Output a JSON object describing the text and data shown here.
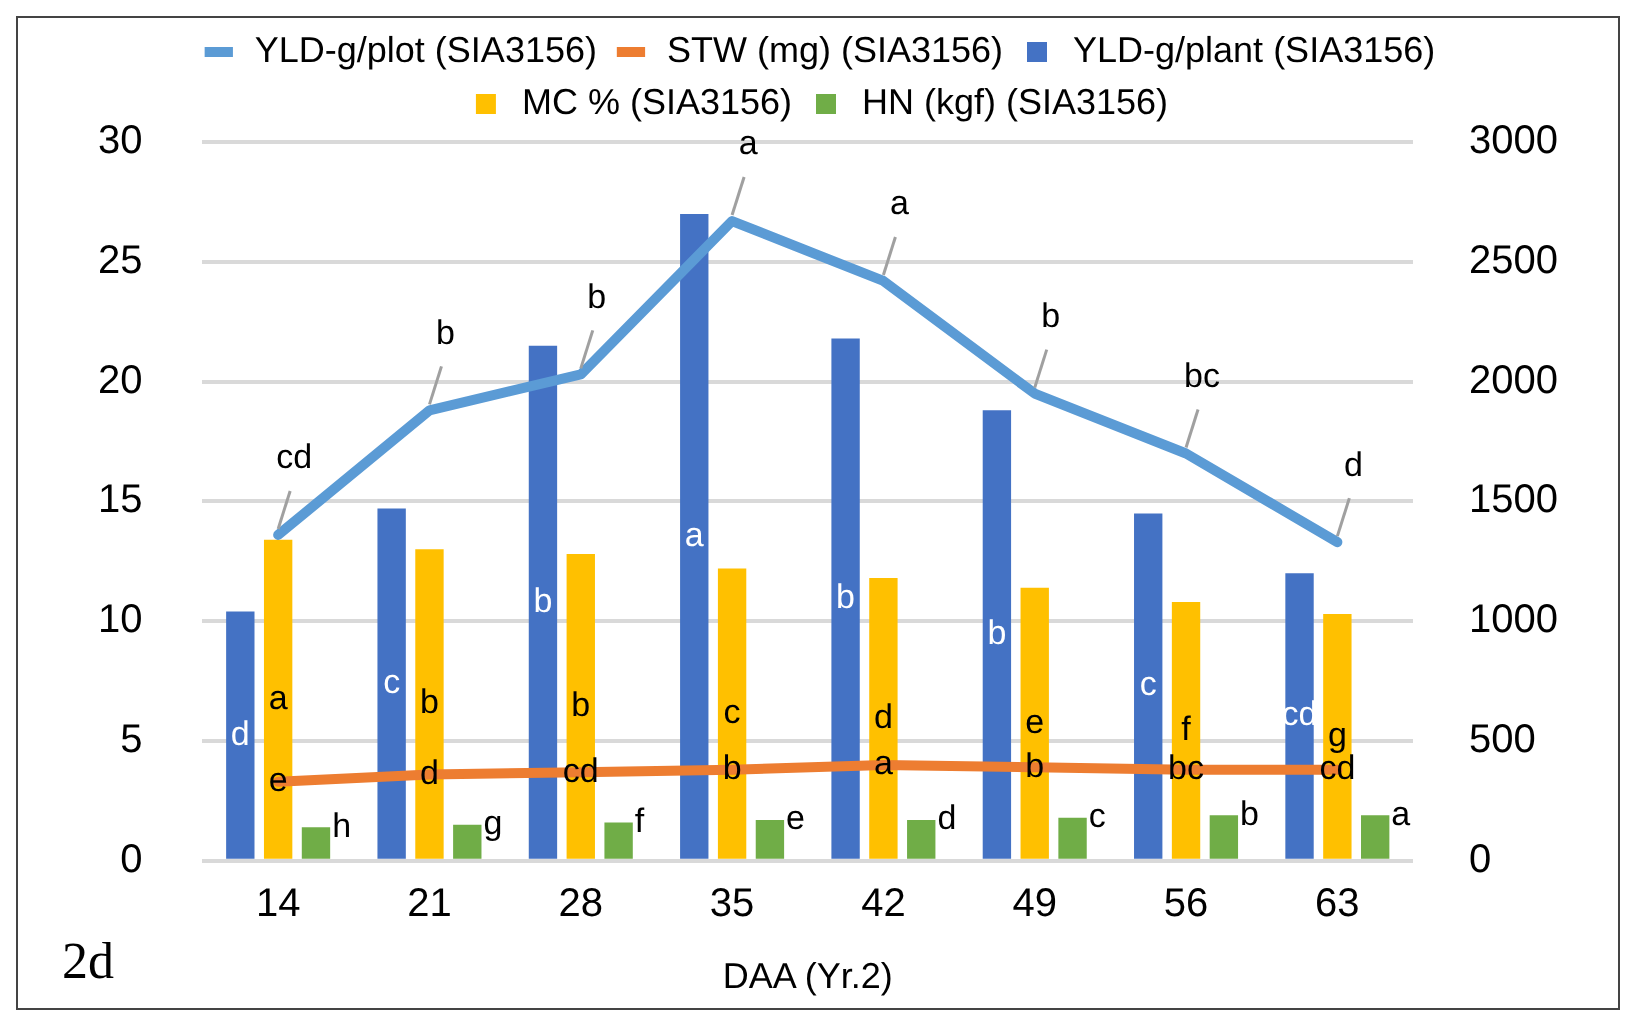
{
  "chart_data": {
    "type": "bar",
    "xlabel": "DAA (Yr.2)",
    "categories": [
      "14",
      "21",
      "28",
      "35",
      "42",
      "49",
      "56",
      "63"
    ],
    "series": [
      {
        "name": "YLD-g/plant (SIA3156)",
        "color": "#4472c4",
        "values": [
          10.4,
          14.7,
          21.5,
          27,
          21.8,
          18.8,
          14.5,
          12.0
        ],
        "value_labels": [
          "d",
          "c",
          "b",
          "a",
          "b",
          "b",
          "c",
          "cd"
        ]
      },
      {
        "name": "MC % (SIA3156)",
        "color": "#ffc000",
        "values": [
          13.4,
          13.0,
          12.8,
          12.2,
          11.8,
          11.4,
          10.8,
          10.3
        ],
        "value_labels": [
          "a",
          "b",
          "b",
          "c",
          "d",
          "e",
          "f",
          "g"
        ]
      },
      {
        "name": "HN (kgf) (SIA3156)",
        "color": "#70ad47",
        "values": [
          1.4,
          1.5,
          1.6,
          1.7,
          1.7,
          1.8,
          1.9,
          1.9
        ],
        "value_labels": [
          "h",
          "g",
          "f",
          "e",
          "d",
          "c",
          "b",
          "a"
        ]
      },
      {
        "name": "YLD-g/plot (SIA3156)",
        "type": "line",
        "axis": "y2",
        "color": "#5b9bd5",
        "values": [
          1360,
          1880,
          2030,
          2670,
          2420,
          1950,
          1700,
          1330
        ],
        "value_labels": [
          "cd",
          "b",
          "b",
          "a",
          "a",
          "b",
          "bc",
          "d"
        ]
      },
      {
        "name": "STW (mg) (SIA3156)",
        "type": "line",
        "axis": "y2",
        "color": "#ed7d31",
        "values": [
          330,
          360,
          370,
          380,
          400,
          390,
          380,
          380
        ],
        "value_labels": [
          "e",
          "d",
          "cd",
          "b",
          "a",
          "b",
          "bc",
          "cd"
        ]
      }
    ],
    "ylim": [
      0,
      30
    ],
    "yticks": [
      0,
      5,
      10,
      15,
      20,
      25,
      30
    ],
    "y2lim": [
      0,
      3000
    ],
    "y2ticks": [
      0,
      500,
      1000,
      1500,
      2000,
      2500,
      3000
    ],
    "grid": "y",
    "legend": "top",
    "marker": "none",
    "line_style": "solid",
    "annotations": [
      "2d"
    ]
  }
}
